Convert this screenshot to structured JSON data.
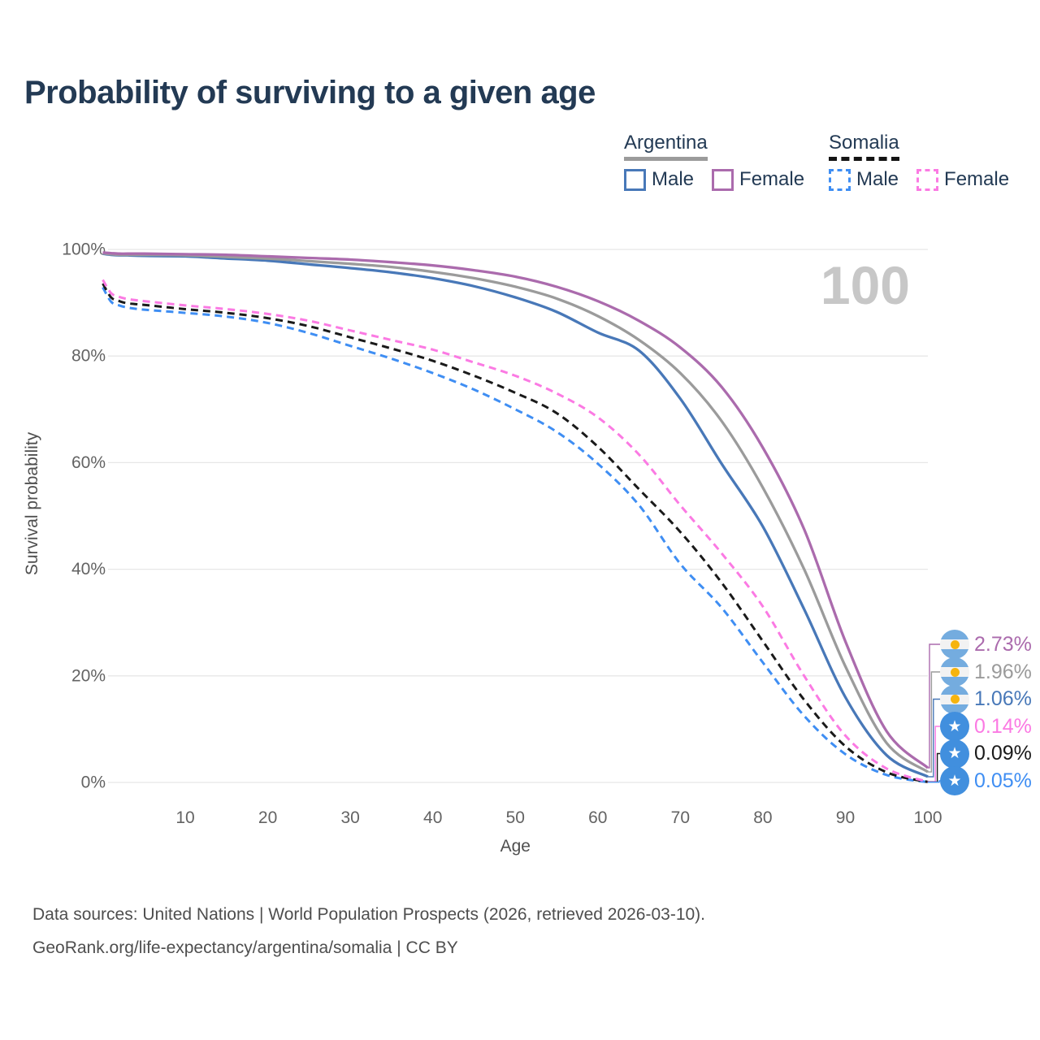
{
  "page": {
    "title": "Probability of surviving to a given age"
  },
  "legend": {
    "groups": [
      {
        "label": "Argentina",
        "line_style": "solid",
        "underline_color": "#9b9b9b",
        "items": [
          {
            "label": "Male",
            "color": "#4878b8",
            "dashed": false
          },
          {
            "label": "Female",
            "color": "#ab6bad",
            "dashed": false
          }
        ]
      },
      {
        "label": "Somalia",
        "line_style": "dashed",
        "underline_color": "#141414",
        "items": [
          {
            "label": "Male",
            "color": "#3f8ef3",
            "dashed": true
          },
          {
            "label": "Female",
            "color": "#fb7ae3",
            "dashed": true
          }
        ]
      }
    ]
  },
  "chart_data": {
    "type": "line",
    "title": "Probability of surviving to a given age",
    "xlabel": "Age",
    "ylabel": "Survival probability",
    "xlim": [
      0,
      100
    ],
    "ylim": [
      0,
      100
    ],
    "grid": "horizontal",
    "watermark": "100",
    "x_tick_values": [
      10,
      20,
      30,
      40,
      50,
      60,
      70,
      80,
      90,
      100
    ],
    "x_tick_labels": [
      "10",
      "20",
      "30",
      "40",
      "50",
      "60",
      "70",
      "80",
      "90",
      "100"
    ],
    "y_tick_values": [
      0,
      20,
      40,
      60,
      80,
      100
    ],
    "y_tick_labels": [
      "0%",
      "20%",
      "40%",
      "60%",
      "80%",
      "100%"
    ],
    "x": [
      0,
      1,
      2,
      3,
      5,
      10,
      15,
      20,
      25,
      30,
      35,
      40,
      45,
      50,
      55,
      60,
      65,
      70,
      75,
      80,
      85,
      90,
      95,
      100
    ],
    "series": [
      {
        "name": "Argentina Female",
        "country": "Argentina",
        "sex": "Female",
        "color": "#ab6bad",
        "dashed": false,
        "end_label": "2.73%",
        "values": [
          99.4,
          99.3,
          99.2,
          99.2,
          99.2,
          99.1,
          99.0,
          98.7,
          98.4,
          98.1,
          97.6,
          97.0,
          96.1,
          94.9,
          93.0,
          90.3,
          86.6,
          81.6,
          74.2,
          62.8,
          47.5,
          26.5,
          9.6,
          2.73
        ]
      },
      {
        "name": "Argentina",
        "country": "Argentina",
        "sex": "Both",
        "color": "#9b9b9b",
        "dashed": false,
        "end_label": "1.96%",
        "values": [
          99.3,
          99.1,
          99.0,
          99.0,
          99.0,
          98.9,
          98.6,
          98.3,
          97.8,
          97.3,
          96.7,
          95.8,
          94.6,
          93.0,
          90.8,
          87.5,
          83.0,
          76.8,
          67.8,
          55.3,
          40.0,
          21.8,
          7.4,
          1.96
        ]
      },
      {
        "name": "Argentina Male",
        "country": "Argentina",
        "sex": "Male",
        "color": "#4878b8",
        "dashed": false,
        "end_label": "1.06%",
        "values": [
          99.2,
          99.0,
          98.9,
          98.9,
          98.8,
          98.7,
          98.3,
          97.9,
          97.2,
          96.5,
          95.7,
          94.6,
          93.1,
          91.0,
          88.3,
          84.4,
          81.0,
          72.0,
          59.8,
          48.0,
          32.5,
          16.0,
          5.1,
          1.06
        ]
      },
      {
        "name": "Somalia Female",
        "country": "Somalia",
        "sex": "Female",
        "color": "#fb7ae3",
        "dashed": true,
        "end_label": "0.14%",
        "values": [
          94.3,
          91.8,
          91.1,
          90.7,
          90.3,
          89.5,
          88.8,
          87.9,
          86.6,
          84.8,
          83.0,
          81.2,
          78.8,
          76.3,
          73.0,
          68.5,
          61.5,
          52.0,
          43.0,
          33.0,
          20.0,
          8.8,
          2.6,
          0.14
        ]
      },
      {
        "name": "Somalia",
        "country": "Somalia",
        "sex": "Both",
        "color": "#1a1a1a",
        "dashed": true,
        "end_label": "0.09%",
        "values": [
          93.6,
          91.0,
          90.3,
          89.9,
          89.6,
          88.8,
          88.1,
          87.1,
          85.6,
          83.5,
          81.4,
          79.1,
          76.3,
          73.1,
          69.3,
          63.0,
          55.0,
          47.0,
          37.5,
          26.5,
          15.5,
          6.8,
          1.9,
          0.09
        ]
      },
      {
        "name": "Somalia Male",
        "country": "Somalia",
        "sex": "Male",
        "color": "#3f8ef3",
        "dashed": true,
        "end_label": "0.05%",
        "values": [
          92.9,
          90.2,
          89.5,
          89.1,
          88.7,
          88.1,
          87.4,
          86.2,
          84.3,
          81.9,
          79.5,
          76.8,
          73.7,
          70.0,
          65.8,
          59.8,
          52.0,
          41.0,
          32.8,
          22.5,
          12.5,
          5.3,
          1.4,
          0.05
        ]
      }
    ]
  },
  "footer": {
    "line1": "Data sources: United Nations | World Population Prospects (2026, retrieved 2026-03-10).",
    "line2": "GeoRank.org/life-expectancy/argentina/somalia | CC BY"
  }
}
